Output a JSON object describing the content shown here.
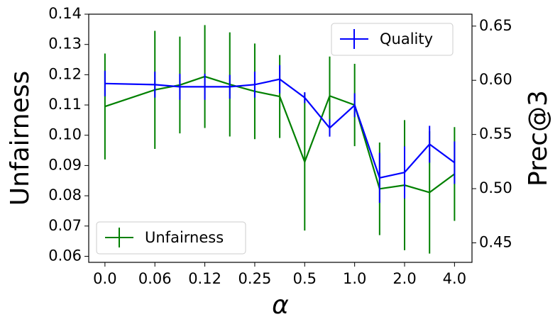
{
  "chart_data": {
    "type": "line",
    "xlabel": "α",
    "ylabel": "Unfairness",
    "y2label": "Prec@3",
    "x": [
      0,
      2,
      3,
      4,
      5,
      6,
      7,
      8,
      9,
      10,
      11,
      12,
      13,
      14
    ],
    "xlim": [
      -0.65,
      14.7
    ],
    "xticks": [
      {
        "value": 0,
        "label": "0.0"
      },
      {
        "value": 2,
        "label": "0.06"
      },
      {
        "value": 4,
        "label": "0.12"
      },
      {
        "value": 6,
        "label": "0.25"
      },
      {
        "value": 8,
        "label": "0.5"
      },
      {
        "value": 10,
        "label": "1.0"
      },
      {
        "value": 12,
        "label": "2.0"
      },
      {
        "value": 14,
        "label": "4.0"
      }
    ],
    "ylim": [
      0.058,
      0.14
    ],
    "yticks": [
      {
        "value": 0.06,
        "label": "0.06"
      },
      {
        "value": 0.07,
        "label": "0.07"
      },
      {
        "value": 0.08,
        "label": "0.08"
      },
      {
        "value": 0.09,
        "label": "0.09"
      },
      {
        "value": 0.1,
        "label": "0.10"
      },
      {
        "value": 0.11,
        "label": "0.11"
      },
      {
        "value": 0.12,
        "label": "0.12"
      },
      {
        "value": 0.13,
        "label": "0.13"
      },
      {
        "value": 0.14,
        "label": "0.14"
      }
    ],
    "y2lim": [
      0.432,
      0.661
    ],
    "y2ticks": [
      {
        "value": 0.45,
        "label": "0.45"
      },
      {
        "value": 0.5,
        "label": "0.50"
      },
      {
        "value": 0.55,
        "label": "0.55"
      },
      {
        "value": 0.6,
        "label": "0.60"
      },
      {
        "value": 0.65,
        "label": "0.65"
      }
    ],
    "series": [
      {
        "name": "Unfairness",
        "color": "#008000",
        "axis": "y",
        "legend": "lower left",
        "values": [
          0.1095,
          0.115,
          0.1166,
          0.1194,
          0.1168,
          0.1145,
          0.1128,
          0.0912,
          0.113,
          0.11,
          0.0823,
          0.0835,
          0.0811,
          0.0872
        ],
        "errors": [
          0.0175,
          0.0195,
          0.016,
          0.017,
          0.0172,
          0.0158,
          0.0137,
          0.0227,
          0.013,
          0.0136,
          0.0153,
          0.0215,
          0.0202,
          0.0155
        ]
      },
      {
        "name": "Quality",
        "color": "#0000ff",
        "axis": "y2",
        "legend": "upper right",
        "values": [
          0.597,
          0.596,
          0.594,
          0.594,
          0.594,
          0.596,
          0.601,
          0.584,
          0.556,
          0.577,
          0.51,
          0.515,
          0.541,
          0.524
        ],
        "errors": [
          0.0118,
          0.012,
          0.012,
          0.012,
          0.011,
          0.012,
          0.013,
          0.005,
          0.008,
          0.011,
          0.023,
          0.024,
          0.017,
          0.0196
        ]
      }
    ]
  }
}
